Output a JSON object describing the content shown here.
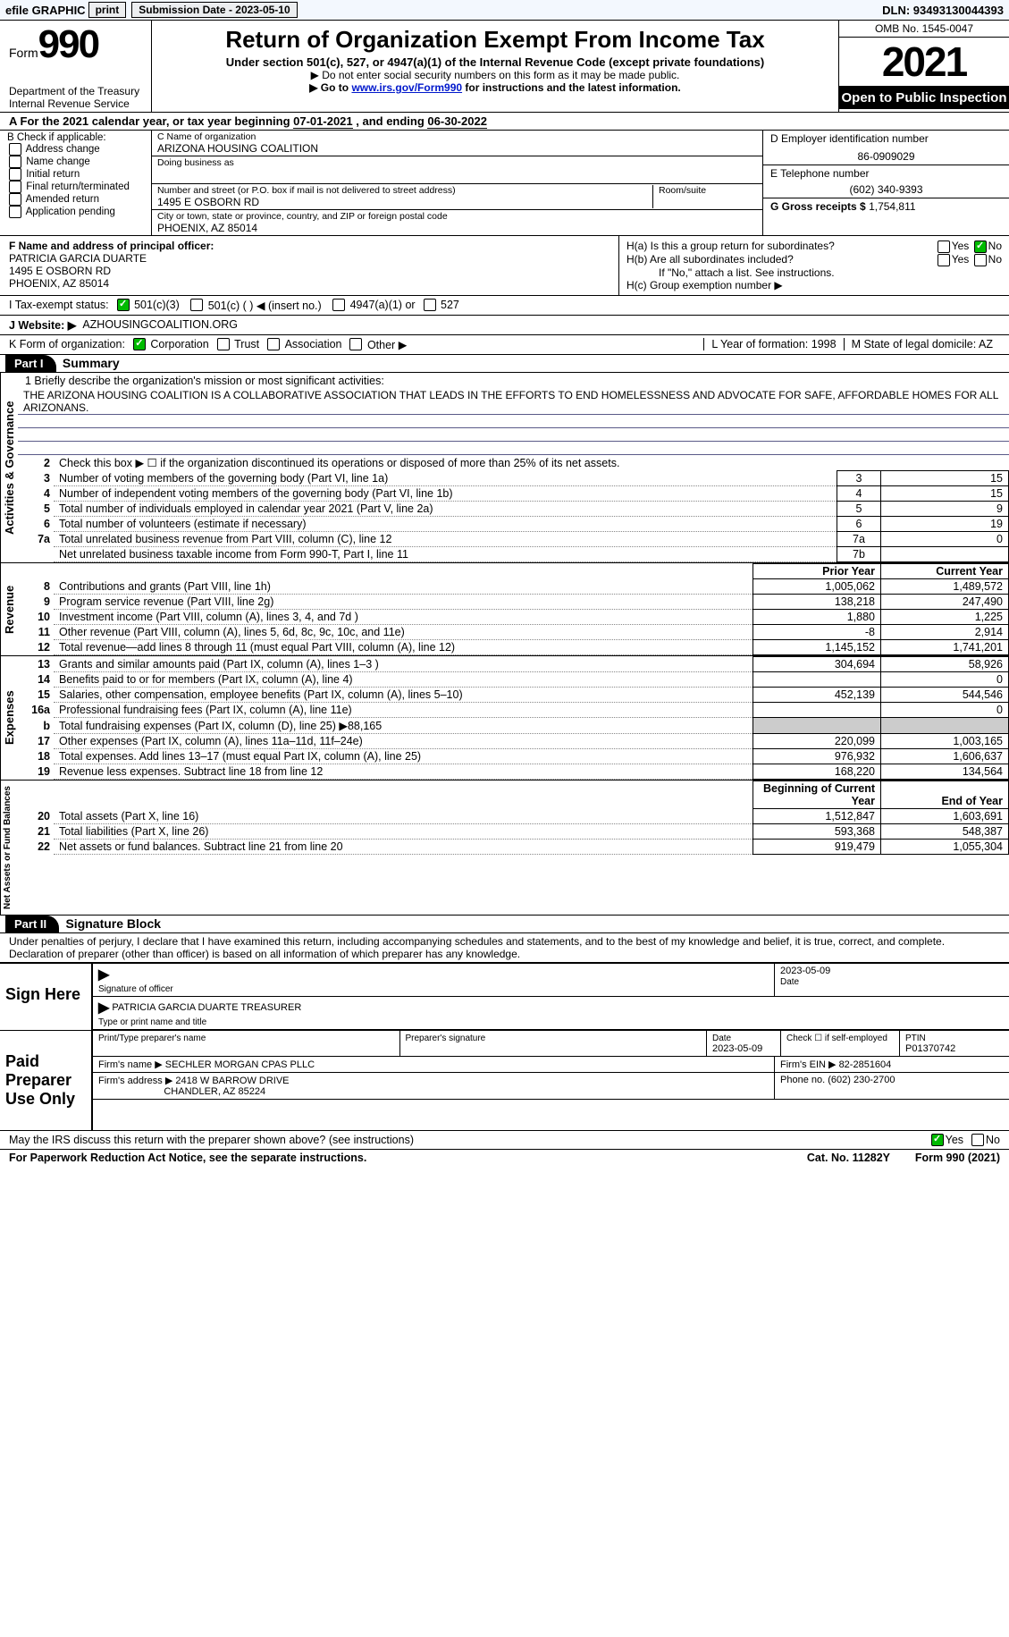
{
  "topbar": {
    "efile": "efile GRAPHIC",
    "print": "print",
    "submission_label": "Submission Date - 2023-05-10",
    "dln_label": "DLN: 93493130044393"
  },
  "header": {
    "form_label": "Form",
    "form_number": "990",
    "title": "Return of Organization Exempt From Income Tax",
    "subtitle": "Under section 501(c), 527, or 4947(a)(1) of the Internal Revenue Code (except private foundations)",
    "note1": "▶ Do not enter social security numbers on this form as it may be made public.",
    "note2_pre": "▶ Go to ",
    "note2_link": "www.irs.gov/Form990",
    "note2_post": " for instructions and the latest information.",
    "dept": "Department of the Treasury\nInternal Revenue Service",
    "omb": "OMB No. 1545-0047",
    "year": "2021",
    "open_pub": "Open to Public Inspection"
  },
  "rowA": {
    "pre": "A For the 2021 calendar year, or tax year beginning ",
    "begin": "07-01-2021",
    "mid": " , and ending ",
    "end": "06-30-2022"
  },
  "colB": {
    "title": "B Check if applicable:",
    "opts": [
      "Address change",
      "Name change",
      "Initial return",
      "Final return/terminated",
      "Amended return",
      "Application pending"
    ]
  },
  "colC": {
    "name_label": "C Name of organization",
    "name": "ARIZONA HOUSING COALITION",
    "dba_label": "Doing business as",
    "dba": "",
    "addr_label": "Number and street (or P.O. box if mail is not delivered to street address)",
    "room_label": "Room/suite",
    "addr": "1495 E OSBORN RD",
    "city_label": "City or town, state or province, country, and ZIP or foreign postal code",
    "city": "PHOENIX, AZ  85014"
  },
  "colD": {
    "ein_label": "D Employer identification number",
    "ein": "86-0909029",
    "phone_label": "E Telephone number",
    "phone": "(602) 340-9393",
    "gross_label": "G Gross receipts $",
    "gross": "1,754,811"
  },
  "secF": {
    "label": "F  Name and address of principal officer:",
    "name": "PATRICIA GARCIA DUARTE",
    "addr1": "1495 E OSBORN RD",
    "addr2": "PHOENIX, AZ  85014"
  },
  "secH": {
    "a_label": "H(a)  Is this a group return for subordinates?",
    "b_label": "H(b)  Are all subordinates included?",
    "b_note": "If \"No,\" attach a list. See instructions.",
    "c_label": "H(c)  Group exemption number ▶",
    "yes": "Yes",
    "no": "No"
  },
  "rowI": {
    "label": "I   Tax-exempt status:",
    "opt1": "501(c)(3)",
    "opt2": "501(c) (  ) ◀ (insert no.)",
    "opt3": "4947(a)(1) or",
    "opt4": "527"
  },
  "rowJ": {
    "label": "J   Website: ▶",
    "value": "AZHOUSINGCOALITION.ORG"
  },
  "rowK": {
    "label": "K Form of organization:",
    "opts": [
      "Corporation",
      "Trust",
      "Association",
      "Other ▶"
    ],
    "L_label": "L Year of formation:",
    "L_val": "1998",
    "M_label": "M State of legal domicile:",
    "M_val": "AZ"
  },
  "partI": {
    "header": "Part I",
    "title": "Summary"
  },
  "mission": {
    "q": "1   Briefly describe the organization's mission or most significant activities:",
    "text": "THE ARIZONA HOUSING COALITION IS A COLLABORATIVE ASSOCIATION THAT LEADS IN THE EFFORTS TO END HOMELESSNESS AND ADVOCATE FOR SAFE, AFFORDABLE HOMES FOR ALL ARIZONANS."
  },
  "gov_rows": [
    {
      "n": "2",
      "t": "Check this box ▶ ☐ if the organization discontinued its operations or disposed of more than 25% of its net assets.",
      "bn": "",
      "v": ""
    },
    {
      "n": "3",
      "t": "Number of voting members of the governing body (Part VI, line 1a)",
      "bn": "3",
      "v": "15"
    },
    {
      "n": "4",
      "t": "Number of independent voting members of the governing body (Part VI, line 1b)",
      "bn": "4",
      "v": "15"
    },
    {
      "n": "5",
      "t": "Total number of individuals employed in calendar year 2021 (Part V, line 2a)",
      "bn": "5",
      "v": "9"
    },
    {
      "n": "6",
      "t": "Total number of volunteers (estimate if necessary)",
      "bn": "6",
      "v": "19"
    },
    {
      "n": "7a",
      "t": "Total unrelated business revenue from Part VIII, column (C), line 12",
      "bn": "7a",
      "v": "0"
    },
    {
      "n": "",
      "t": "Net unrelated business taxable income from Form 990-T, Part I, line 11",
      "bn": "7b",
      "v": ""
    }
  ],
  "col_headers": {
    "prior": "Prior Year",
    "current": "Current Year"
  },
  "revenue_rows": [
    {
      "n": "8",
      "t": "Contributions and grants (Part VIII, line 1h)",
      "p": "1,005,062",
      "c": "1,489,572"
    },
    {
      "n": "9",
      "t": "Program service revenue (Part VIII, line 2g)",
      "p": "138,218",
      "c": "247,490"
    },
    {
      "n": "10",
      "t": "Investment income (Part VIII, column (A), lines 3, 4, and 7d )",
      "p": "1,880",
      "c": "1,225"
    },
    {
      "n": "11",
      "t": "Other revenue (Part VIII, column (A), lines 5, 6d, 8c, 9c, 10c, and 11e)",
      "p": "-8",
      "c": "2,914"
    },
    {
      "n": "12",
      "t": "Total revenue—add lines 8 through 11 (must equal Part VIII, column (A), line 12)",
      "p": "1,145,152",
      "c": "1,741,201"
    }
  ],
  "expense_rows": [
    {
      "n": "13",
      "t": "Grants and similar amounts paid (Part IX, column (A), lines 1–3 )",
      "p": "304,694",
      "c": "58,926"
    },
    {
      "n": "14",
      "t": "Benefits paid to or for members (Part IX, column (A), line 4)",
      "p": "",
      "c": "0"
    },
    {
      "n": "15",
      "t": "Salaries, other compensation, employee benefits (Part IX, column (A), lines 5–10)",
      "p": "452,139",
      "c": "544,546"
    },
    {
      "n": "16a",
      "t": "Professional fundraising fees (Part IX, column (A), line 11e)",
      "p": "",
      "c": "0"
    },
    {
      "n": "b",
      "t": "Total fundraising expenses (Part IX, column (D), line 25) ▶88,165",
      "p": "GREY",
      "c": "GREY"
    },
    {
      "n": "17",
      "t": "Other expenses (Part IX, column (A), lines 11a–11d, 11f–24e)",
      "p": "220,099",
      "c": "1,003,165"
    },
    {
      "n": "18",
      "t": "Total expenses. Add lines 13–17 (must equal Part IX, column (A), line 25)",
      "p": "976,932",
      "c": "1,606,637"
    },
    {
      "n": "19",
      "t": "Revenue less expenses. Subtract line 18 from line 12",
      "p": "168,220",
      "c": "134,564"
    }
  ],
  "net_headers": {
    "b": "Beginning of Current Year",
    "e": "End of Year"
  },
  "net_rows": [
    {
      "n": "20",
      "t": "Total assets (Part X, line 16)",
      "p": "1,512,847",
      "c": "1,603,691"
    },
    {
      "n": "21",
      "t": "Total liabilities (Part X, line 26)",
      "p": "593,368",
      "c": "548,387"
    },
    {
      "n": "22",
      "t": "Net assets or fund balances. Subtract line 21 from line 20",
      "p": "919,479",
      "c": "1,055,304"
    }
  ],
  "vlabels": {
    "gov": "Activities & Governance",
    "rev": "Revenue",
    "exp": "Expenses",
    "net": "Net Assets or Fund Balances"
  },
  "partII": {
    "header": "Part II",
    "title": "Signature Block"
  },
  "declare": "Under penalties of perjury, I declare that I have examined this return, including accompanying schedules and statements, and to the best of my knowledge and belief, it is true, correct, and complete. Declaration of preparer (other than officer) is based on all information of which preparer has any knowledge.",
  "sign": {
    "left": "Sign Here",
    "sig_label": "Signature of officer",
    "date": "2023-05-09",
    "date_label": "Date",
    "name": "PATRICIA GARCIA DUARTE  TREASURER",
    "name_label": "Type or print name and title"
  },
  "paid": {
    "left": "Paid Preparer Use Only",
    "prep_name_label": "Print/Type preparer's name",
    "prep_sig_label": "Preparer's signature",
    "date_label": "Date",
    "date": "2023-05-09",
    "self_label": "Check ☐ if self-employed",
    "ptin_label": "PTIN",
    "ptin": "P01370742",
    "firm_name_label": "Firm's name    ▶",
    "firm_name": "SECHLER MORGAN CPAS PLLC",
    "firm_ein_label": "Firm's EIN ▶",
    "firm_ein": "82-2851604",
    "firm_addr_label": "Firm's address ▶",
    "firm_addr1": "2418 W BARROW DRIVE",
    "firm_addr2": "CHANDLER, AZ  85224",
    "phone_label": "Phone no.",
    "phone": "(602) 230-2700"
  },
  "discuss": {
    "q": "May the IRS discuss this return with the preparer shown above? (see instructions)",
    "yes": "Yes",
    "no": "No"
  },
  "footer": {
    "left": "For Paperwork Reduction Act Notice, see the separate instructions.",
    "mid": "Cat. No. 11282Y",
    "right": "Form 990 (2021)"
  },
  "style": {
    "bg_topbar": "#f3f8fe",
    "link_color": "#0018cc",
    "grey": "#cccccc",
    "check_green": "#00aa00"
  }
}
